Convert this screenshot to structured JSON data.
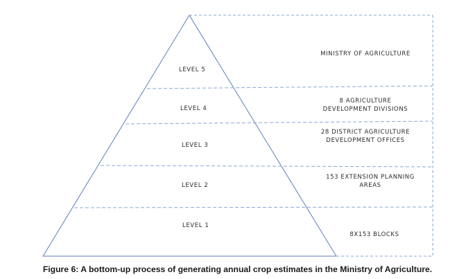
{
  "diagram": {
    "levels": [
      {
        "label": "LEVEL 5",
        "description": [
          "MINISTRY OF AGRICULTURE"
        ]
      },
      {
        "label": "LEVEL 4",
        "description": [
          "8 AGRICULTURE",
          "DEVELOPMENT DIVISIONS"
        ]
      },
      {
        "label": "LEVEL 3",
        "description": [
          "28 DISTRICT AGRICULTURE",
          "DEVELOPMENT OFFICES"
        ]
      },
      {
        "label": "LEVEL 2",
        "description": [
          "153 EXTENSION PLANNING",
          "AREAS"
        ]
      },
      {
        "label": "LEVEL 1",
        "description": [
          "8X153 BLOCKS"
        ]
      }
    ],
    "colors": {
      "pyramid_outline": "#5b7fb8",
      "dashed_lines": "#8aa6d6",
      "text": "#2a2a2a"
    }
  },
  "caption": "Figure 6: A bottom-up process of generating annual crop estimates in the Ministry of Agriculture."
}
